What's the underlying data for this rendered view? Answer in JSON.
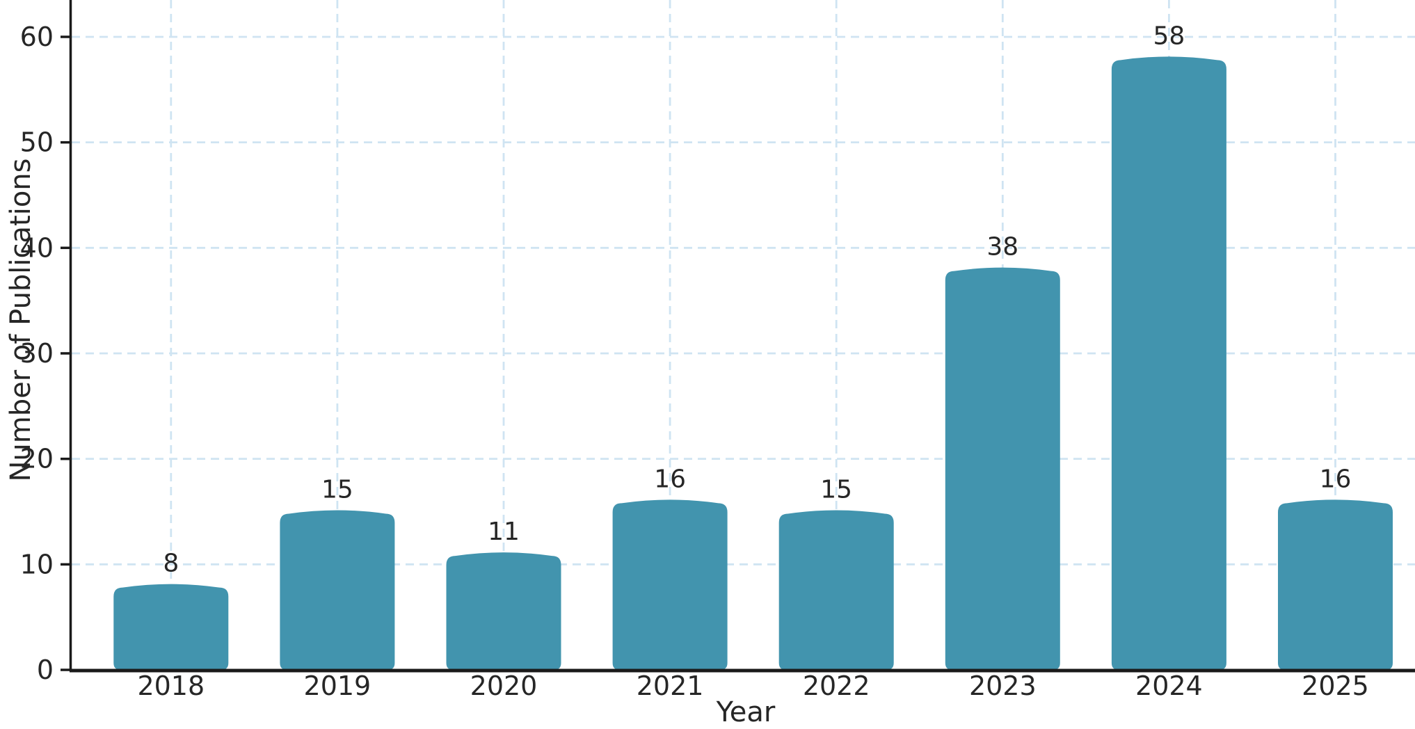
{
  "chart_data": {
    "type": "bar",
    "title": "",
    "xlabel": "Year",
    "ylabel": "Number of Publications",
    "categories": [
      "2018",
      "2019",
      "2020",
      "2021",
      "2022",
      "2023",
      "2024",
      "2025"
    ],
    "values": [
      8,
      15,
      11,
      16,
      15,
      38,
      58,
      16
    ],
    "bar_labels": [
      "8",
      "15",
      "11",
      "16",
      "15",
      "38",
      "58",
      "16"
    ],
    "yticks": [
      0,
      10,
      20,
      30,
      40,
      50,
      60
    ],
    "ylim": [
      0,
      63.5
    ],
    "grid": {
      "horizontal": true,
      "vertical": true,
      "style": "dashed"
    },
    "legend": "none",
    "colors": {
      "bar": "#4294ae",
      "grid": "#cfe4f2",
      "axis": "#1a1a1a",
      "text": "#262626",
      "background": "#ffffff"
    }
  }
}
